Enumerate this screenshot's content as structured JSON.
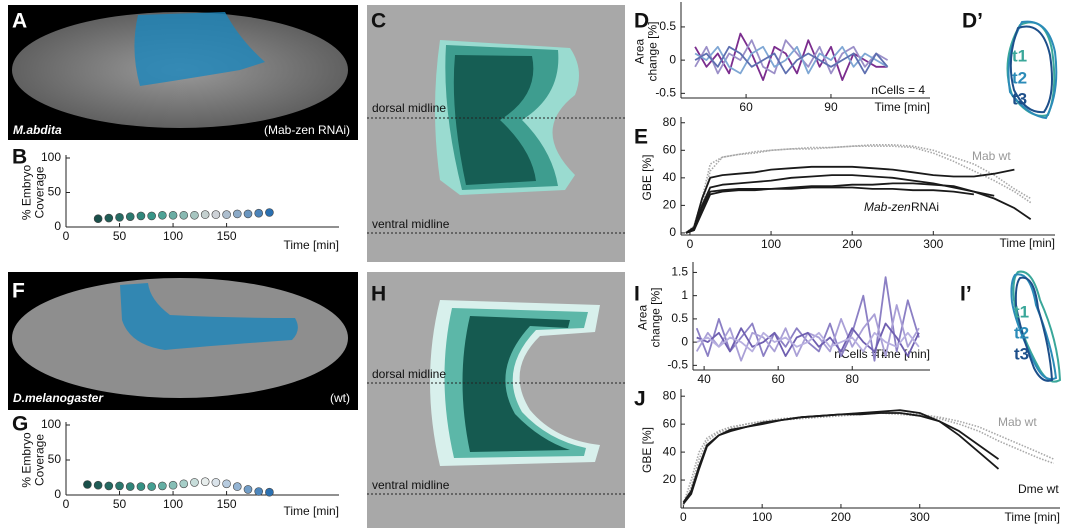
{
  "panels": {
    "A": {
      "letter": "A",
      "species": "M.abdita",
      "condition": "(Mab-zen RNAi)"
    },
    "C": {
      "letter": "C",
      "dorsal": "dorsal midline",
      "ventral": "ventral midline"
    },
    "D_prime": {
      "letter": "D’",
      "timepoints": [
        "t1",
        "t2",
        "t3"
      ]
    },
    "F": {
      "letter": "F",
      "species": "D.melanogaster",
      "condition": "(wt)"
    },
    "H": {
      "letter": "H",
      "dorsal": "dorsal midline",
      "ventral": "ventral midline"
    },
    "I_prime": {
      "letter": "I’",
      "timepoints": [
        "t1",
        "t2",
        "t3"
      ]
    }
  },
  "chart_data": [
    {
      "type": "scatter",
      "panel": "B",
      "xlabel": "Time [min]",
      "ylabel": [
        "% Embryo",
        "Coverage"
      ],
      "xlim": [
        0,
        255
      ],
      "ylim": [
        0,
        100
      ],
      "xticks": [
        0,
        50,
        100,
        150
      ],
      "yticks": [
        0,
        50,
        100
      ],
      "x": [
        30,
        40,
        50,
        60,
        70,
        80,
        90,
        100,
        110,
        120,
        130,
        140,
        150,
        160,
        170,
        180,
        190
      ],
      "values": [
        12,
        13,
        14,
        15,
        16,
        16,
        17,
        17,
        17,
        17,
        18,
        18,
        18,
        19,
        19,
        20,
        21
      ],
      "colors": [
        "#1a4f4a",
        "#3a9a8c",
        "#d8d8d8",
        "#2a6fb0"
      ]
    },
    {
      "type": "line",
      "panel": "D",
      "xlabel": "Time [min]",
      "ylabel": [
        "Area",
        "change [%]"
      ],
      "xlim": [
        37,
        125
      ],
      "ylim": [
        -0.57,
        0.83
      ],
      "xticks": [
        60,
        90
      ],
      "yticks": [
        -0.5,
        0,
        0.5
      ],
      "annotations": [
        "nCells = 4"
      ],
      "x": [
        42,
        46,
        50,
        54,
        58,
        62,
        66,
        70,
        74,
        78,
        82,
        86,
        90,
        94,
        98,
        102,
        106,
        110
      ],
      "series": [
        {
          "color": "#7b2d8e",
          "values": [
            0.2,
            -0.1,
            0.1,
            -0.2,
            0.4,
            0.1,
            -0.3,
            0.2,
            0.1,
            -0.2,
            0.3,
            -0.1,
            0.2,
            -0.3,
            0.1,
            0,
            -0.1,
            -0.1
          ]
        },
        {
          "color": "#9b8fc8",
          "values": [
            -0.1,
            0.2,
            -0.2,
            0.1,
            0,
            0.3,
            -0.1,
            -0.2,
            0.3,
            0.1,
            -0.1,
            0.2,
            -0.2,
            0.1,
            0.2,
            -0.1,
            0.1,
            0
          ]
        },
        {
          "color": "#7fa7d4",
          "values": [
            0.1,
            0,
            0.2,
            -0.1,
            -0.2,
            0.1,
            0.2,
            -0.1,
            0,
            0.2,
            -0.2,
            0.1,
            0,
            0.2,
            -0.1,
            0.1,
            0,
            -0.1
          ]
        },
        {
          "color": "#5e6fb0",
          "values": [
            0,
            0.1,
            -0.1,
            0.2,
            0.1,
            -0.1,
            0,
            0.1,
            -0.2,
            0,
            0.1,
            0,
            -0.1,
            0,
            0.1,
            -0.2,
            0.1,
            -0.1
          ]
        }
      ]
    },
    {
      "type": "line",
      "panel": "E",
      "xlabel": "Time [min]",
      "ylabel": [
        "GBE [%]"
      ],
      "xlim": [
        -11,
        450
      ],
      "ylim": [
        -1.5,
        82
      ],
      "xticks": [
        0,
        100,
        200,
        300
      ],
      "yticks": [
        0,
        20,
        40,
        60,
        80
      ],
      "annotations": [
        "Mab wt",
        "Mab-zen",
        "RNAi"
      ],
      "x": [
        -5,
        5,
        15,
        25,
        40,
        60,
        80,
        100,
        125,
        150,
        175,
        200,
        225,
        250,
        275,
        300,
        325,
        350,
        375,
        400,
        420
      ],
      "series": [
        {
          "color": "#a8a8a8",
          "style": "dotted",
          "values": [
            0,
            5,
            25,
            50,
            55,
            57,
            58,
            60,
            61,
            62,
            62,
            63,
            64,
            64,
            63,
            60,
            55,
            50,
            42,
            32,
            25
          ]
        },
        {
          "color": "#a8a8a8",
          "style": "dotted",
          "values": [
            0,
            3,
            20,
            45,
            55,
            57,
            59,
            60,
            61,
            61,
            62,
            63,
            63,
            63,
            62,
            58,
            52,
            45,
            38,
            30,
            22
          ]
        },
        {
          "color": "#1a1a1a",
          "values": [
            0,
            4,
            25,
            40,
            42,
            43,
            44,
            46,
            47,
            48,
            48,
            48,
            47,
            46,
            44,
            42,
            41,
            41,
            43,
            46,
            null
          ]
        },
        {
          "color": "#1a1a1a",
          "values": [
            0,
            3,
            20,
            33,
            35,
            36,
            37,
            38,
            40,
            41,
            42,
            42,
            41,
            40,
            38,
            36,
            33,
            30,
            27,
            null,
            null
          ]
        },
        {
          "color": "#1a1a1a",
          "values": [
            0,
            2,
            15,
            28,
            30,
            31,
            31,
            32,
            33,
            34,
            34,
            35,
            35,
            36,
            36,
            35,
            34,
            30,
            25,
            18,
            10
          ]
        },
        {
          "color": "#1a1a1a",
          "values": [
            0,
            2,
            18,
            30,
            31,
            32,
            32,
            32,
            32,
            33,
            33,
            33,
            32,
            32,
            31,
            31,
            30,
            28,
            null,
            null,
            null
          ]
        }
      ]
    },
    {
      "type": "scatter",
      "panel": "G",
      "xlabel": "Time [min]",
      "ylabel": [
        "% Embryo",
        "Coverage"
      ],
      "xlim": [
        0,
        255
      ],
      "ylim": [
        0,
        100
      ],
      "xticks": [
        0,
        50,
        100,
        150
      ],
      "yticks": [
        0,
        50,
        100
      ],
      "x": [
        20,
        30,
        40,
        50,
        60,
        70,
        80,
        90,
        100,
        110,
        120,
        130,
        140,
        150,
        160,
        170,
        180,
        190
      ],
      "values": [
        15,
        14,
        13,
        13,
        12,
        12,
        12,
        13,
        14,
        16,
        18,
        19,
        18,
        16,
        12,
        8,
        5,
        4
      ],
      "colors": [
        "#1a4f4a",
        "#3a9a8c",
        "#f2f2f2",
        "#2a6fb0"
      ]
    },
    {
      "type": "line",
      "panel": "I",
      "xlabel": "Time [min]",
      "ylabel": [
        "Area",
        "change [%]"
      ],
      "xlim": [
        37,
        101
      ],
      "ylim": [
        -0.6,
        1.66
      ],
      "xticks": [
        40,
        60,
        80
      ],
      "yticks": [
        -0.5,
        0,
        0.5,
        1,
        1.5
      ],
      "annotations": [
        "nCells = 4"
      ],
      "x": [
        38,
        41,
        44,
        47,
        50,
        53,
        56,
        59,
        62,
        65,
        68,
        71,
        74,
        77,
        80,
        83,
        86,
        89,
        92,
        95,
        98
      ],
      "series": [
        {
          "color": "#8b7fc4",
          "values": [
            0.3,
            -0.3,
            0.5,
            -0.2,
            0.1,
            0.4,
            -0.3,
            0.2,
            -0.1,
            0.3,
            0,
            -0.2,
            0.4,
            -0.3,
            0.2,
            1.0,
            -0.4,
            1.4,
            -0.2,
            0.9,
            0.1
          ]
        },
        {
          "color": "#a99fd6",
          "values": [
            -0.2,
            0.2,
            -0.1,
            0.3,
            -0.4,
            0.2,
            0.1,
            -0.2,
            0.3,
            -0.3,
            0.2,
            0.1,
            -0.2,
            0.5,
            -0.1,
            0.3,
            0.6,
            -0.3,
            0.8,
            -0.1,
            0.3
          ]
        },
        {
          "color": "#6f5fb0",
          "values": [
            0.1,
            0,
            0.2,
            -0.2,
            0.3,
            -0.1,
            0,
            0.2,
            -0.3,
            0.1,
            0.2,
            -0.1,
            0.1,
            -0.2,
            0.3,
            0,
            -0.2,
            0.4,
            0.1,
            -0.3,
            0.2
          ]
        },
        {
          "color": "#b8b0e0",
          "values": [
            0,
            0.1,
            -0.1,
            0.1,
            0,
            -0.2,
            0.2,
            0,
            0.1,
            -0.1,
            0,
            0.2,
            -0.1,
            0,
            0.1,
            -0.2,
            0.2,
            0,
            -0.1,
            0.2,
            -0.1
          ]
        }
      ]
    },
    {
      "type": "line",
      "panel": "J",
      "xlabel": "Time [min]",
      "ylabel": [
        "GBE [%]"
      ],
      "xlim": [
        -3,
        478
      ],
      "ylim": [
        0,
        83
      ],
      "xticks": [
        0,
        100,
        200,
        300
      ],
      "yticks": [
        20,
        40,
        60,
        80
      ],
      "annotations": [
        "Mab wt",
        "Dme wt"
      ],
      "x": [
        0,
        10,
        20,
        30,
        45,
        60,
        80,
        100,
        125,
        150,
        175,
        200,
        225,
        250,
        275,
        300,
        325,
        350,
        375,
        400,
        425,
        450,
        470
      ],
      "series": [
        {
          "color": "#a8a8a8",
          "style": "dotted",
          "values": [
            3,
            20,
            40,
            50,
            55,
            58,
            60,
            62,
            64,
            65,
            66,
            67,
            68,
            68,
            67,
            66,
            64,
            60,
            55,
            48,
            42,
            36,
            32
          ]
        },
        {
          "color": "#a8a8a8",
          "style": "dotted",
          "values": [
            2,
            15,
            35,
            48,
            54,
            57,
            60,
            62,
            63,
            64,
            65,
            66,
            67,
            68,
            68,
            67,
            65,
            62,
            58,
            52,
            46,
            40,
            35
          ]
        },
        {
          "color": "#1a1a1a",
          "values": [
            4,
            12,
            30,
            45,
            52,
            55,
            58,
            60,
            63,
            65,
            66,
            67,
            68,
            69,
            70,
            68,
            62,
            52,
            40,
            28,
            null,
            null,
            null
          ]
        },
        {
          "color": "#1a1a1a",
          "values": [
            3,
            10,
            28,
            44,
            52,
            56,
            58,
            61,
            63,
            65,
            66,
            67,
            67,
            68,
            68,
            66,
            62,
            55,
            45,
            35,
            null,
            null,
            null
          ]
        }
      ]
    }
  ]
}
